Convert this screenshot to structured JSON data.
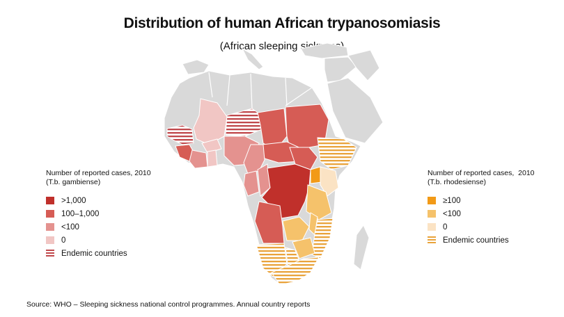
{
  "title": "Distribution of human African trypanosomiasis",
  "subtitle": "(African sleeping sickness)",
  "legend_gambiense": {
    "heading_line1": "Number of reported cases, 2010",
    "heading_line2": "(T.b. gambiense)",
    "items": [
      {
        "label": ">1,000",
        "color": "#c0302b"
      },
      {
        "label": "100–1,000",
        "color": "#d65c55"
      },
      {
        "label": "<100",
        "color": "#e4928f"
      },
      {
        "label": "0",
        "color": "#f1c6c4"
      },
      {
        "label": "Endemic countries",
        "color": "#c0474b"
      }
    ]
  },
  "legend_rhodesiense": {
    "heading_line1": "Number of reported cases,  2010",
    "heading_line2": "(T.b. rhodesiense)",
    "items": [
      {
        "label": "≥100",
        "color": "#f29a17"
      },
      {
        "label": "<100",
        "color": "#f5c26b"
      },
      {
        "label": "0",
        "color": "#fbe3c4"
      },
      {
        "label": "Endemic countries",
        "color": "#e9a33b"
      }
    ]
  },
  "source": "Source: WHO – Sleeping sickness national control programmes. Annual country reports",
  "colors": {
    "land": "#d9d9d9",
    "border": "#ffffff"
  }
}
